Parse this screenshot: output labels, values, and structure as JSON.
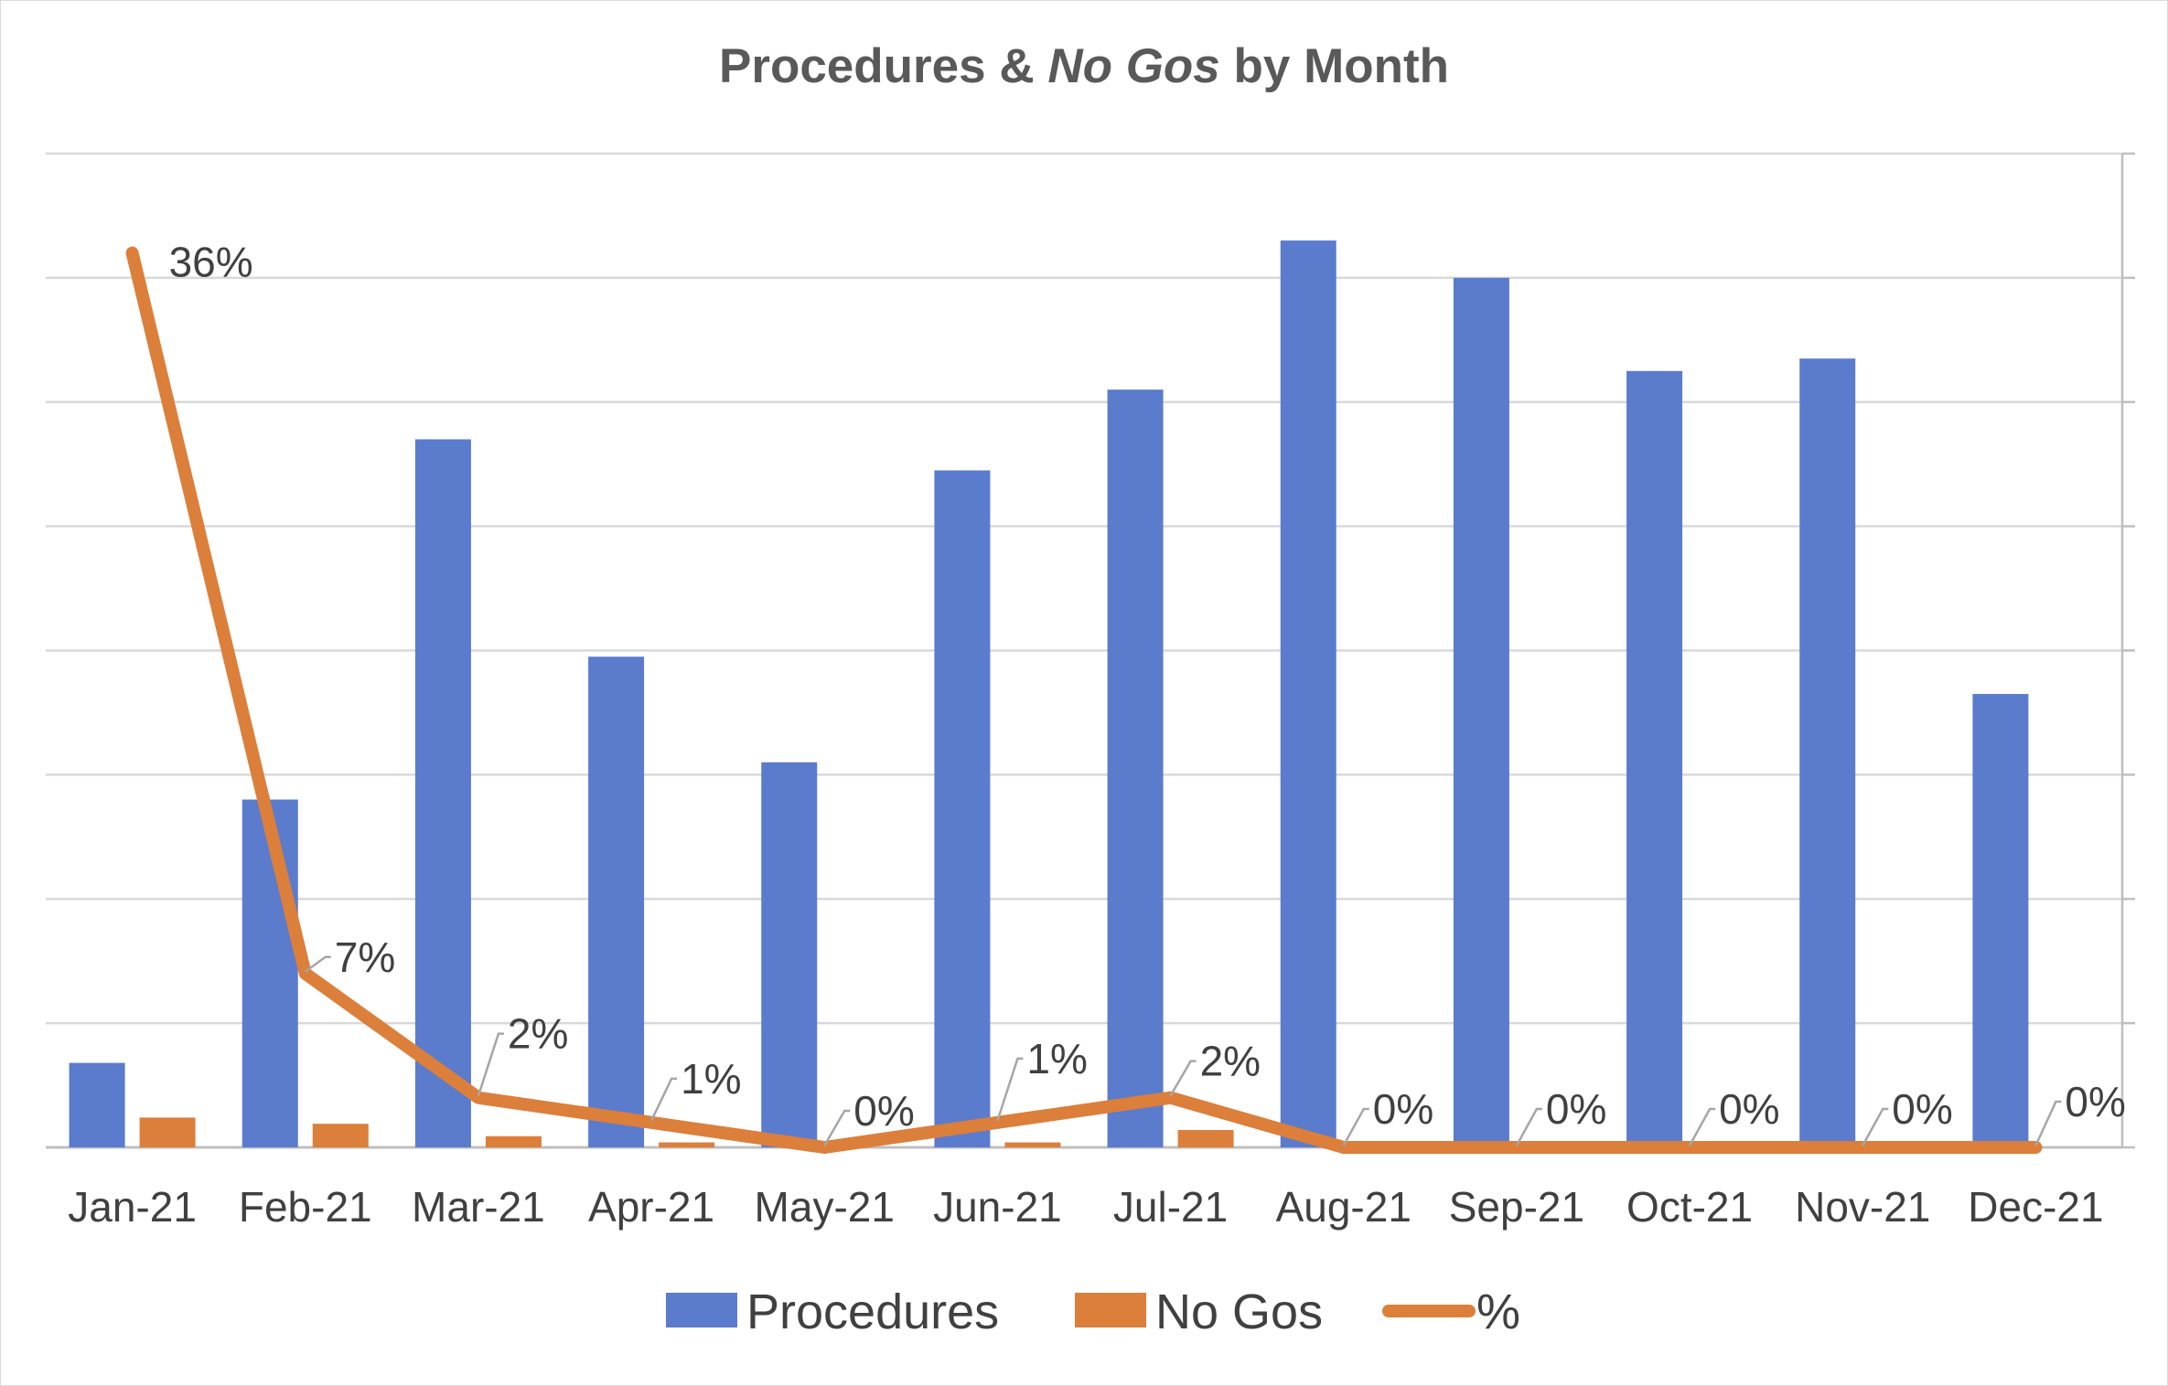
{
  "chart_data": {
    "type": "bar",
    "title_parts": [
      {
        "text": "Procedures & ",
        "italic": false
      },
      {
        "text": "No Gos",
        "italic": true
      },
      {
        "text": " by Month",
        "italic": false
      }
    ],
    "categories": [
      "Jan-21",
      "Feb-21",
      "Mar-21",
      "Apr-21",
      "May-21",
      "Jun-21",
      "Jul-21",
      "Aug-21",
      "Sep-21",
      "Oct-21",
      "Nov-21",
      "Dec-21"
    ],
    "series": [
      {
        "name": "Procedures",
        "type": "bar",
        "axis": "primary",
        "color": "#5b7bcd",
        "values": [
          6.8,
          28,
          57,
          39.5,
          31,
          54.5,
          61,
          73,
          70,
          62.5,
          63.5,
          36.5
        ]
      },
      {
        "name": "No Gos",
        "type": "bar",
        "axis": "primary",
        "color": "#db7f3b",
        "values": [
          2.4,
          1.9,
          0.9,
          0.4,
          0,
          0.4,
          1.4,
          0,
          0,
          0,
          0,
          0
        ]
      },
      {
        "name": "%",
        "type": "line",
        "axis": "secondary",
        "color": "#db7f3b",
        "values": [
          36,
          7,
          2,
          1,
          0,
          1,
          2,
          0,
          0,
          0,
          0,
          0
        ],
        "labels": [
          "36%",
          "7%",
          "2%",
          "1%",
          "0%",
          "1%",
          "2%",
          "0%",
          "0%",
          "0%",
          "0%",
          "0%"
        ]
      }
    ],
    "primary_axis": {
      "ylim": [
        0,
        80
      ],
      "gridlines": 8,
      "tick_labels_visible": false
    },
    "secondary_axis": {
      "ylim": [
        0,
        40
      ],
      "tick_labels_visible": false
    },
    "grid": true,
    "legend_position": "bottom"
  }
}
